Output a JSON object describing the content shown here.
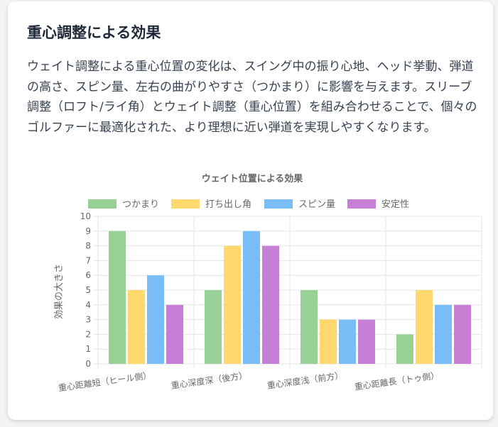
{
  "section": {
    "title": "重心調整による効果",
    "paragraph": "ウェイト調整による重心位置の変化は、スイング中の振り心地、ヘッド挙動、弾道の高さ、スピン量、左右の曲がりやすさ（つかまり）に影響を与えます。スリーブ調整（ロフト/ライ角）とウェイト調整（重心位置）を組み合わせることで、個々のゴルファーに最適化された、より理想に近い弾道を実現しやすくなります。"
  },
  "chart_data": {
    "type": "bar",
    "title": "ウェイト位置による効果",
    "ylabel": "効果の大きさ",
    "xlabel": "",
    "ylim": [
      0,
      10
    ],
    "yticks": [
      "0",
      "1",
      "2",
      "3",
      "4",
      "5",
      "6",
      "7",
      "8",
      "9",
      "10"
    ],
    "categories": [
      "重心距離短（ヒール側）",
      "重心深度深（後方）",
      "重心深度浅（前方）",
      "重心距離長（トゥ側）"
    ],
    "series": [
      {
        "name": "つかまり",
        "values": [
          9,
          5,
          5,
          2
        ],
        "color": "#97d196"
      },
      {
        "name": "打ち出し角",
        "values": [
          5,
          8,
          3,
          5
        ],
        "color": "#ffd96e"
      },
      {
        "name": "スピン量",
        "values": [
          6,
          9,
          3,
          4
        ],
        "color": "#79bdf7"
      },
      {
        "name": "安定性",
        "values": [
          4,
          8,
          3,
          4
        ],
        "color": "#c77fd6"
      }
    ],
    "grid": true,
    "legend": "top"
  }
}
